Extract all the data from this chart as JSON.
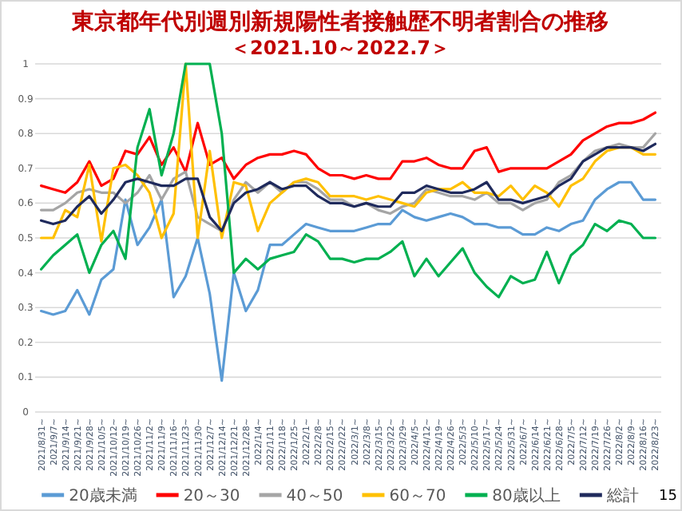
{
  "chart_data": {
    "type": "line",
    "title": "東京都年代別週別新規陽性者接触歴不明者割合の推移",
    "subtitle": "＜2021.10～2022.7＞",
    "categories": [
      "2021/8/31~",
      "2021/9/7~",
      "2021/9/14~",
      "2021/9/21~",
      "2021/9/28~",
      "2021/10/5~",
      "2021/10/12~",
      "2021/10/19~",
      "2021/10/26~",
      "2021/11/2~",
      "2021/11/9~",
      "2021/11/16~",
      "2021/11/23~",
      "2021/11/30~",
      "2021/12/7~",
      "2021/12/14~",
      "2021/12/21~",
      "2021/12/28~",
      "2022/1/4~",
      "2022/1/11~",
      "2022/1/18~",
      "2022/1/25~",
      "2022/2/1~",
      "2022/2/8~",
      "2022/2/15~",
      "2022/2/22~",
      "2022/3/1~",
      "2022/3/8~",
      "2022/3/15~",
      "2022/3/22~",
      "2022/3/29~",
      "2022/4/5~",
      "2022/4/12~",
      "2022/4/19~",
      "2022/4/26~",
      "2022/5/3~",
      "2022/5/10~",
      "2022/5/17~",
      "2022/5/24~",
      "2022/5/31~",
      "2022/6/7~",
      "2022/6/14~",
      "2022/6/21~",
      "2022/6/28~",
      "2022/7/5~",
      "2022/7/12~",
      "2022/7/19~",
      "2022/7/26~",
      "2022/8/2~",
      "2022/8/9~",
      "2022/8/16~",
      "2022/8/23~"
    ],
    "series": [
      {
        "name": "20歳未満",
        "color": "#5b9bd5",
        "values": [
          0.29,
          0.28,
          0.29,
          0.35,
          0.28,
          0.38,
          0.41,
          0.61,
          0.48,
          0.53,
          0.61,
          0.33,
          0.39,
          0.5,
          0.34,
          0.09,
          0.4,
          0.29,
          0.35,
          0.48,
          0.48,
          0.51,
          0.54,
          0.53,
          0.52,
          0.52,
          0.52,
          0.53,
          0.54,
          0.54,
          0.58,
          0.56,
          0.55,
          0.56,
          0.57,
          0.56,
          0.54,
          0.54,
          0.53,
          0.53,
          0.51,
          0.51,
          0.53,
          0.52,
          0.54,
          0.55,
          0.61,
          0.64,
          0.66,
          0.66,
          0.61,
          0.61
        ]
      },
      {
        "name": "20～30",
        "color": "#ff0000",
        "values": [
          0.65,
          0.64,
          0.63,
          0.66,
          0.72,
          0.65,
          0.67,
          0.75,
          0.74,
          0.79,
          0.71,
          0.76,
          0.69,
          0.83,
          0.71,
          0.73,
          0.67,
          0.71,
          0.73,
          0.74,
          0.74,
          0.75,
          0.74,
          0.7,
          0.68,
          0.68,
          0.67,
          0.68,
          0.67,
          0.67,
          0.72,
          0.72,
          0.73,
          0.71,
          0.7,
          0.7,
          0.75,
          0.76,
          0.69,
          0.7,
          0.7,
          0.7,
          0.7,
          0.72,
          0.74,
          0.78,
          0.8,
          0.82,
          0.83,
          0.83,
          0.84,
          0.86
        ]
      },
      {
        "name": "40～50",
        "color": "#a5a5a5",
        "values": [
          0.58,
          0.58,
          0.6,
          0.63,
          0.64,
          0.63,
          0.63,
          0.6,
          0.63,
          0.68,
          0.61,
          0.67,
          0.69,
          0.56,
          0.54,
          0.52,
          0.61,
          0.66,
          0.63,
          0.66,
          0.63,
          0.66,
          0.66,
          0.64,
          0.61,
          0.61,
          0.59,
          0.6,
          0.58,
          0.57,
          0.59,
          0.6,
          0.64,
          0.63,
          0.62,
          0.62,
          0.61,
          0.63,
          0.6,
          0.6,
          0.58,
          0.6,
          0.61,
          0.66,
          0.68,
          0.72,
          0.75,
          0.76,
          0.77,
          0.76,
          0.76,
          0.8
        ]
      },
      {
        "name": "60～70",
        "color": "#ffc000",
        "values": [
          0.5,
          0.5,
          0.58,
          0.56,
          0.71,
          0.49,
          0.7,
          0.71,
          0.68,
          0.63,
          0.5,
          0.57,
          1.0,
          0.5,
          0.75,
          0.5,
          0.66,
          0.65,
          0.52,
          0.6,
          0.63,
          0.66,
          0.67,
          0.66,
          0.62,
          0.62,
          0.62,
          0.61,
          0.62,
          0.61,
          0.6,
          0.59,
          0.63,
          0.64,
          0.64,
          0.66,
          0.63,
          0.63,
          0.62,
          0.65,
          0.61,
          0.65,
          0.63,
          0.59,
          0.65,
          0.67,
          0.72,
          0.75,
          0.76,
          0.76,
          0.74,
          0.74
        ]
      },
      {
        "name": "80歳以上",
        "color": "#00b050",
        "values": [
          0.41,
          0.45,
          0.48,
          0.51,
          0.4,
          0.48,
          0.52,
          0.44,
          0.76,
          0.87,
          0.68,
          0.8,
          1.0,
          1.0,
          1.0,
          0.8,
          0.4,
          0.44,
          0.41,
          0.44,
          0.45,
          0.46,
          0.51,
          0.49,
          0.44,
          0.44,
          0.43,
          0.44,
          0.44,
          0.46,
          0.49,
          0.39,
          0.44,
          0.39,
          0.43,
          0.47,
          0.4,
          0.36,
          0.33,
          0.39,
          0.37,
          0.38,
          0.46,
          0.37,
          0.45,
          0.48,
          0.54,
          0.52,
          0.55,
          0.54,
          0.5,
          0.5
        ]
      },
      {
        "name": "総計",
        "color": "#1f2a5c",
        "values": [
          0.55,
          0.54,
          0.55,
          0.59,
          0.62,
          0.57,
          0.61,
          0.66,
          0.67,
          0.66,
          0.65,
          0.65,
          0.67,
          0.67,
          0.56,
          0.52,
          0.6,
          0.63,
          0.64,
          0.66,
          0.64,
          0.65,
          0.65,
          0.62,
          0.6,
          0.6,
          0.59,
          0.6,
          0.59,
          0.59,
          0.63,
          0.63,
          0.65,
          0.64,
          0.63,
          0.63,
          0.64,
          0.66,
          0.61,
          0.61,
          0.6,
          0.61,
          0.62,
          0.65,
          0.67,
          0.72,
          0.74,
          0.76,
          0.76,
          0.76,
          0.75,
          0.77
        ]
      }
    ],
    "ylim": [
      0,
      1
    ],
    "yticks": [
      0,
      0.1,
      0.2,
      0.3,
      0.4,
      0.5,
      0.6,
      0.7,
      0.8,
      0.9,
      1
    ],
    "grid": "y",
    "legend": "bottom",
    "marker": "none",
    "line_style": "solid",
    "annotations": [
      "15"
    ]
  }
}
